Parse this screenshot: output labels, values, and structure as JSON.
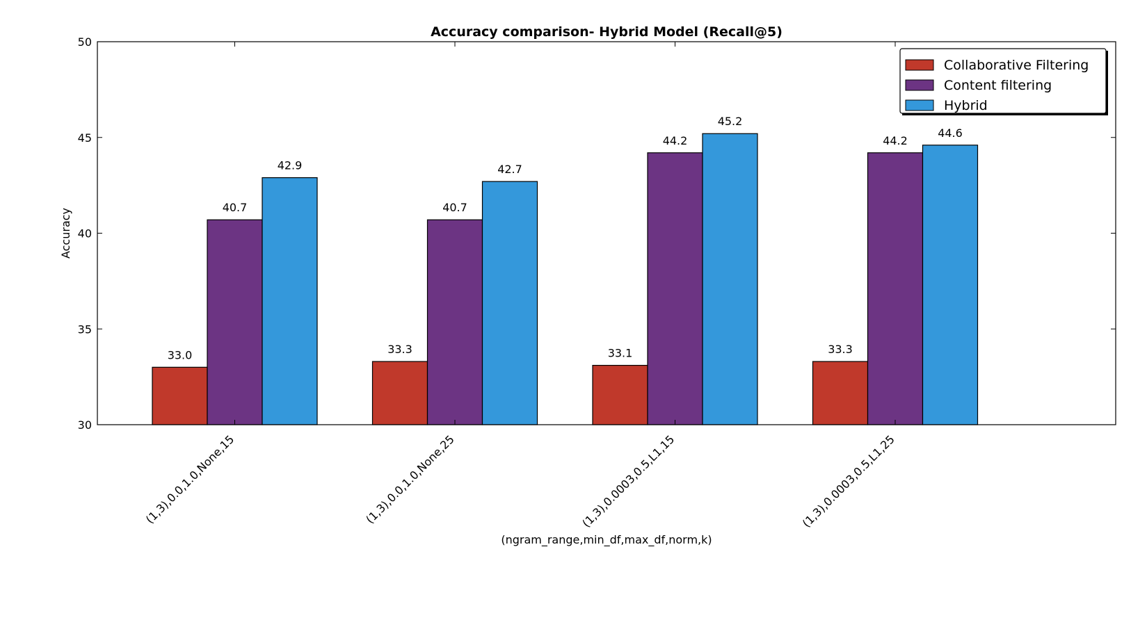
{
  "chart_data": {
    "type": "bar",
    "title": "Accuracy comparison- Hybrid Model (Recall@5)",
    "xlabel": "(ngram_range,min_df,max_df,norm,k)",
    "ylabel": "Accuracy",
    "ylim": [
      30,
      50
    ],
    "yticks": [
      "30",
      "35",
      "40",
      "45",
      "50"
    ],
    "categories": [
      "(1,3),0.0,1.0,None,15",
      "(1,3),0.0,1.0,None,25",
      "(1,3),0.0003,0.5,L1,15",
      "(1,3),0.0003,0.5,L1,25"
    ],
    "series": [
      {
        "name": "Collaborative Filtering",
        "color": "#c0392b",
        "values": [
          33.0,
          33.3,
          33.1,
          33.3
        ],
        "labels": [
          "33.0",
          "33.3",
          "33.1",
          "33.3"
        ]
      },
      {
        "name": "Content filtering",
        "color": "#6c3483",
        "values": [
          40.7,
          40.7,
          44.2,
          44.2
        ],
        "labels": [
          "40.7",
          "40.7",
          "44.2",
          "44.2"
        ]
      },
      {
        "name": "Hybrid",
        "color": "#3498db",
        "values": [
          42.9,
          42.7,
          45.2,
          44.6
        ],
        "labels": [
          "42.9",
          "42.7",
          "45.2",
          "44.6"
        ]
      }
    ],
    "legend_position": "top-right",
    "grid": false
  }
}
